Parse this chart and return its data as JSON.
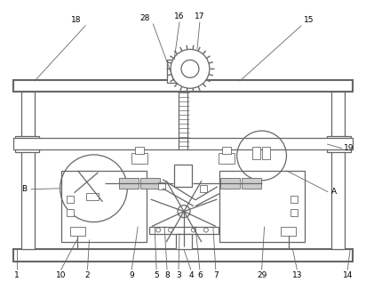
{
  "bg_color": "#ffffff",
  "line_color": "#666666",
  "lw_thin": 0.6,
  "lw_med": 0.9,
  "lw_thick": 1.5,
  "fig_w": 4.12,
  "fig_h": 3.17,
  "dpi": 100
}
